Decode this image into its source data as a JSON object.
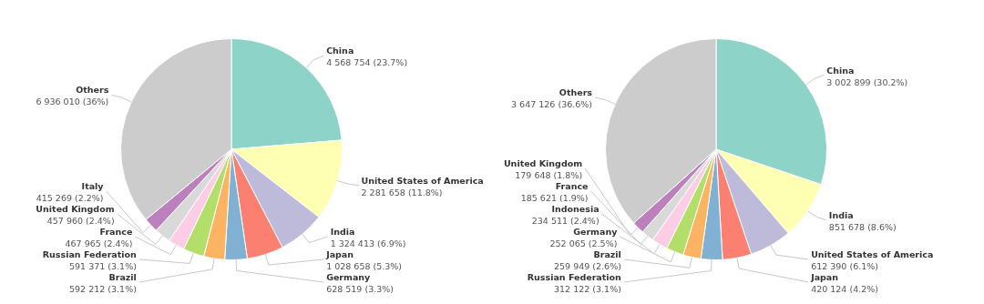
{
  "chart_data": [
    {
      "type": "pie",
      "categories": [
        "China",
        "United States of America",
        "India",
        "Japan",
        "Germany",
        "Brazil",
        "Russian Federation",
        "France",
        "United Kingdom",
        "Italy",
        "Others"
      ],
      "values": [
        4568754,
        2281658,
        1324413,
        1028658,
        628519,
        592212,
        591371,
        467965,
        457960,
        415269,
        6936010
      ],
      "value_labels": [
        "4 568 754 (23.7%)",
        "2 281 658 (11.8%)",
        "1 324 413 (6.9%)",
        "1 028 658 (5.3%)",
        "628 519 (3.3%)",
        "592 212 (3.1%)",
        "591 371 (3.1%)",
        "467 965 (2.4%)",
        "457 960 (2.4%)",
        "415 269 (2.2%)",
        "6 936 010 (36%)"
      ],
      "colors": [
        "#8dd3c7",
        "#ffffb3",
        "#bebada",
        "#fb8072",
        "#80b1d3",
        "#fdb462",
        "#b3de69",
        "#fccde5",
        "#d9d9d9",
        "#bc80bd",
        "#cccccc"
      ]
    },
    {
      "type": "pie",
      "categories": [
        "China",
        "India",
        "United States of America",
        "Japan",
        "Russian Federation",
        "Brazil",
        "Germany",
        "Indonesia",
        "France",
        "United Kingdom",
        "Others"
      ],
      "values": [
        3002899,
        851678,
        612390,
        420124,
        312122,
        259949,
        252065,
        234511,
        185621,
        179648,
        3647126
      ],
      "value_labels": [
        "3 002 899 (30.2%)",
        "851 678 (8.6%)",
        "612 390 (6.1%)",
        "420 124 (4.2%)",
        "312 122 (3.1%)",
        "259 949 (2.6%)",
        "252 065 (2.5%)",
        "234 511 (2.4%)",
        "185 621 (1.9%)",
        "179 648 (1.8%)",
        "3 647 126 (36.6%)"
      ],
      "colors": [
        "#8dd3c7",
        "#ffffb3",
        "#bebada",
        "#fb8072",
        "#80b1d3",
        "#fdb462",
        "#b3de69",
        "#fccde5",
        "#d9d9d9",
        "#bc80bd",
        "#cccccc"
      ]
    }
  ]
}
